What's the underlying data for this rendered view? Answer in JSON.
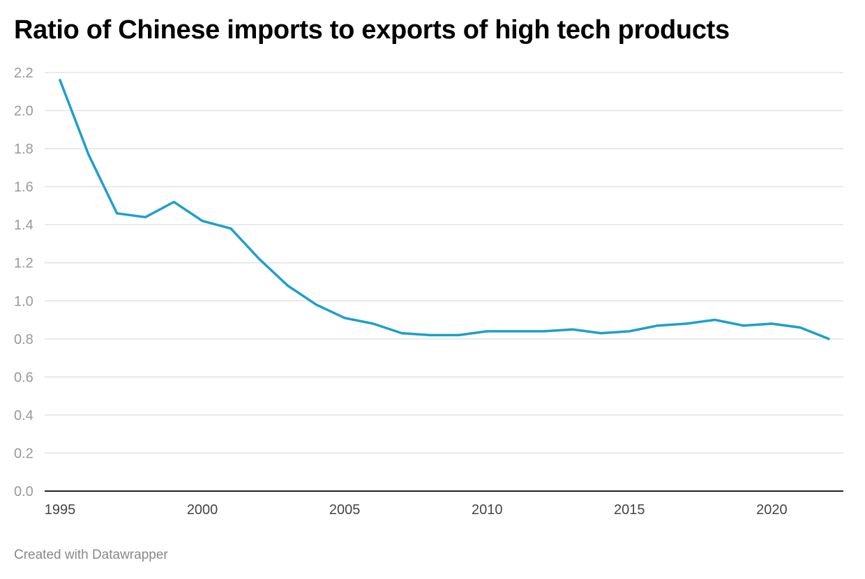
{
  "title": "Ratio of Chinese imports to exports of high tech products",
  "footer": "Created with Datawrapper",
  "colors": {
    "line": "#1f9fca",
    "grid": "#e3e3e3",
    "axis": "#222222",
    "tick_text": "#999999",
    "background": "#ffffff"
  },
  "chart_data": {
    "type": "line",
    "title": "Ratio of Chinese imports to exports of high tech products",
    "xlabel": "",
    "ylabel": "",
    "x": [
      1995,
      1996,
      1997,
      1998,
      1999,
      2000,
      2001,
      2002,
      2003,
      2004,
      2005,
      2006,
      2007,
      2008,
      2009,
      2010,
      2011,
      2012,
      2013,
      2014,
      2015,
      2016,
      2017,
      2018,
      2019,
      2020,
      2021,
      2022
    ],
    "series": [
      {
        "values": [
          2.16,
          1.77,
          1.46,
          1.44,
          1.52,
          1.42,
          1.38,
          1.22,
          1.08,
          0.98,
          0.91,
          0.88,
          0.83,
          0.82,
          0.82,
          0.84,
          0.84,
          0.84,
          0.85,
          0.83,
          0.84,
          0.87,
          0.88,
          0.9,
          0.87,
          0.88,
          0.86,
          0.8
        ]
      }
    ],
    "xlim": [
      1995,
      2022
    ],
    "ylim": [
      0,
      2.2
    ],
    "y_ticks": [
      "0.0",
      "0.2",
      "0.4",
      "0.6",
      "0.8",
      "1.0",
      "1.2",
      "1.4",
      "1.6",
      "1.8",
      "2.0",
      "2.2"
    ],
    "x_ticks": [
      "1995",
      "2000",
      "2005",
      "2010",
      "2015",
      "2020"
    ],
    "grid": true,
    "legend": "none"
  }
}
